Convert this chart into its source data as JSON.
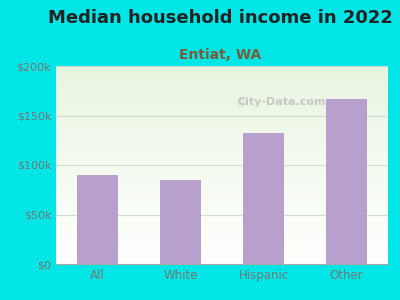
{
  "title": "Median household income in 2022",
  "subtitle": "Entiat, WA",
  "categories": [
    "All",
    "White",
    "Hispanic",
    "Other"
  ],
  "values": [
    90000,
    85000,
    132000,
    167000
  ],
  "bar_color": "#b8a0cc",
  "ylim": [
    0,
    200000
  ],
  "yticks": [
    0,
    50000,
    100000,
    150000,
    200000
  ],
  "ytick_labels": [
    "$0",
    "$50k",
    "$100k",
    "$150k",
    "$200k"
  ],
  "title_fontsize": 13,
  "subtitle_fontsize": 10,
  "title_color": "#222222",
  "subtitle_color": "#7a5c3a",
  "tick_color": "#777777",
  "grid_color": "#d0ddd0",
  "bg_outer": "#00e5e5",
  "bg_plot_color1": "#e8f5e0",
  "bg_plot_color2": "#ffffff",
  "watermark": "City-Data.com"
}
